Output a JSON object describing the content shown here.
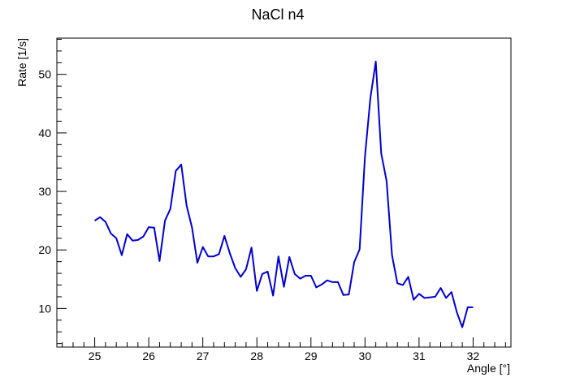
{
  "chart_data": {
    "type": "line",
    "title": "NaCl n4",
    "xlabel": "Angle [°]",
    "ylabel": "Rate [1/s]",
    "xlim": [
      24.3,
      32.7
    ],
    "ylim": [
      3.4,
      56.2
    ],
    "xticks": [
      25,
      26,
      27,
      28,
      29,
      30,
      31,
      32
    ],
    "yticks": [
      10,
      20,
      30,
      40,
      50
    ],
    "grid": false,
    "line_color": "#0000d0",
    "series": [
      {
        "x": [
          25.0,
          25.1,
          25.2,
          25.3,
          25.4,
          25.5,
          25.6,
          25.7,
          25.8,
          25.9,
          26.0,
          26.1,
          26.2,
          26.3,
          26.4,
          26.5,
          26.6,
          26.7,
          26.8,
          26.9,
          27.0,
          27.1,
          27.2,
          27.3,
          27.4,
          27.5,
          27.6,
          27.7,
          27.8,
          27.9,
          28.0,
          28.1,
          28.2,
          28.3,
          28.4,
          28.5,
          28.6,
          28.7,
          28.8,
          28.9,
          29.0,
          29.1,
          29.2,
          29.3,
          29.4,
          29.5,
          29.6,
          29.7,
          29.8,
          29.9,
          30.0,
          30.1,
          30.2,
          30.3,
          30.4,
          30.5,
          30.6,
          30.7,
          30.8,
          30.9,
          31.0,
          31.1,
          31.2,
          31.3,
          31.4,
          31.5,
          31.6,
          31.7,
          31.8,
          31.9,
          32.0
        ],
        "y": [
          25.0,
          25.6,
          24.8,
          22.8,
          22.0,
          19.1,
          22.7,
          21.6,
          21.7,
          22.3,
          23.9,
          23.8,
          18.1,
          25.0,
          27.0,
          33.5,
          34.6,
          27.6,
          23.8,
          17.8,
          20.5,
          18.9,
          18.9,
          19.3,
          22.4,
          19.4,
          16.9,
          15.4,
          16.7,
          20.4,
          13.0,
          15.9,
          16.3,
          12.2,
          18.9,
          13.7,
          18.8,
          15.9,
          15.1,
          15.6,
          15.6,
          13.6,
          14.1,
          14.8,
          14.5,
          14.5,
          12.3,
          12.4,
          17.9,
          20.1,
          36.0,
          46.0,
          52.2,
          36.5,
          31.8,
          19.1,
          14.3,
          14.0,
          15.4,
          11.5,
          12.5,
          11.8,
          11.9,
          12.0,
          13.5,
          11.8,
          12.8,
          9.3,
          6.8,
          10.2,
          10.2
        ]
      }
    ]
  }
}
